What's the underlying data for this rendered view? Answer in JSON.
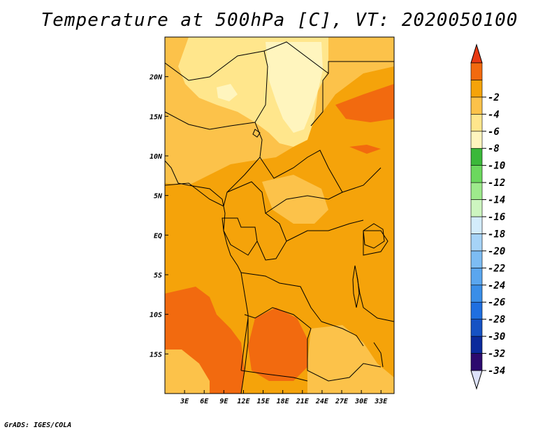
{
  "title": "Temperature at 500hPa [C], VT: 2020050100",
  "credit": "GrADS: IGES/COLA",
  "colors": {
    "land_base": "#f5a30a",
    "warm": "#f26a0f",
    "cool_light": "#fcc24a",
    "cooler": "#ffe68c",
    "coolest": "#fff5be",
    "border": "#000000"
  },
  "map": {
    "lon_range": [
      0,
      35
    ],
    "lat_range": [
      -20,
      25
    ],
    "x_ticks": [
      {
        "label": "3E",
        "value": 3
      },
      {
        "label": "6E",
        "value": 6
      },
      {
        "label": "9E",
        "value": 9
      },
      {
        "label": "12E",
        "value": 12
      },
      {
        "label": "15E",
        "value": 15
      },
      {
        "label": "18E",
        "value": 18
      },
      {
        "label": "21E",
        "value": 21
      },
      {
        "label": "24E",
        "value": 24
      },
      {
        "label": "27E",
        "value": 27
      },
      {
        "label": "30E",
        "value": 30
      },
      {
        "label": "33E",
        "value": 33
      }
    ],
    "y_ticks": [
      {
        "label": "20N",
        "value": 20
      },
      {
        "label": "15N",
        "value": 15
      },
      {
        "label": "10N",
        "value": 10
      },
      {
        "label": "5N",
        "value": 5
      },
      {
        "label": "EQ",
        "value": 0
      },
      {
        "label": "5S",
        "value": -5
      },
      {
        "label": "10S",
        "value": -10
      },
      {
        "label": "15S",
        "value": -15
      }
    ]
  },
  "colorbar": {
    "boxes": [
      {
        "color": "#2c0a6e",
        "label": "-34"
      },
      {
        "color": "#0b2a9c",
        "label": "-32"
      },
      {
        "color": "#1652c4",
        "label": "-30"
      },
      {
        "color": "#1f6fe0",
        "label": "-28"
      },
      {
        "color": "#3a8ee8",
        "label": "-26"
      },
      {
        "color": "#5aa6ef",
        "label": "-24"
      },
      {
        "color": "#7dbcf3",
        "label": "-22"
      },
      {
        "color": "#a6d3f7",
        "label": "-20"
      },
      {
        "color": "#d3ecfb",
        "label": "-18"
      },
      {
        "color": "#cdf5c0",
        "label": "-16"
      },
      {
        "color": "#9eea8c",
        "label": "-14"
      },
      {
        "color": "#6cd85e",
        "label": "-12"
      },
      {
        "color": "#3bb83a",
        "label": "-10"
      },
      {
        "color": "#fff5be",
        "label": "-8"
      },
      {
        "color": "#ffe68c",
        "label": "-6"
      },
      {
        "color": "#fcc24a",
        "label": "-4"
      },
      {
        "color": "#f5a30a",
        "label": "-2"
      },
      {
        "color": "#f26a0f",
        "label": ""
      }
    ],
    "bottom_triangle_color": "#dde2fa",
    "top_triangle_color": "#e83a13"
  }
}
